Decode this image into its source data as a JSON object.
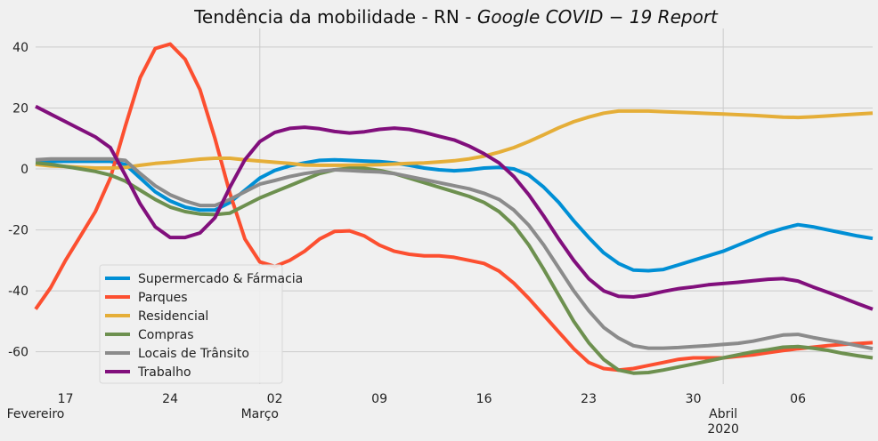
{
  "chart_data": {
    "type": "line",
    "title": "Tendência da mobilidade - RN - ",
    "title_italic": "Google COVID − 19 Report",
    "xlabel": "",
    "ylabel": "",
    "x_start_date": "2020-02-15",
    "x_end_date": "2020-04-11",
    "xlim": [
      0,
      56
    ],
    "ylim": [
      -70.6,
      46.1
    ],
    "yticks": [
      40,
      20,
      0,
      -20,
      -40,
      -60
    ],
    "xticks_minor": [
      {
        "day": 2,
        "label": "17"
      },
      {
        "day": 9,
        "label": "24"
      },
      {
        "day": 16,
        "label": "02"
      },
      {
        "day": 23,
        "label": "09"
      },
      {
        "day": 30,
        "label": "16"
      },
      {
        "day": 37,
        "label": "23"
      },
      {
        "day": 44,
        "label": "30"
      },
      {
        "day": 51,
        "label": "06"
      }
    ],
    "xticks_major": [
      {
        "day": 0,
        "label": "Fevereiro",
        "grid": false
      },
      {
        "day": 15,
        "label": "Março",
        "grid": true
      },
      {
        "day": 46,
        "label": "Abril",
        "label2": "2020",
        "grid": true
      }
    ],
    "grid": true,
    "legend_position": "lower-left",
    "series": [
      {
        "name": "Supermercado & Fármacia",
        "color": "#008fd5",
        "values": [
          2.5,
          2.5,
          2.5,
          2.5,
          2.5,
          2.5,
          1.5,
          -3,
          -7.5,
          -10.5,
          -12.5,
          -13.5,
          -13.5,
          -11,
          -7,
          -3,
          -0.5,
          1,
          2,
          2.8,
          3,
          2.8,
          2.6,
          2.4,
          2,
          1.2,
          0.3,
          -0.3,
          -0.6,
          -0.3,
          0.3,
          0.5,
          0,
          -2,
          -6,
          -11,
          -17,
          -22.5,
          -27.5,
          -31,
          -33.2,
          -33.4,
          -33,
          -31.5,
          -30,
          -28.5,
          -27,
          -25,
          -23,
          -21,
          -19.5,
          -18.3,
          -19,
          -20,
          -21,
          -22,
          -22.8
        ]
      },
      {
        "name": "Parques",
        "color": "#fc4f30",
        "values": [
          -46,
          -39,
          -30,
          -22,
          -14,
          -3,
          14,
          30,
          39.5,
          41,
          36,
          26,
          10,
          -8,
          -23,
          -30.5,
          -32,
          -30,
          -27,
          -23,
          -20.5,
          -20.3,
          -22,
          -25,
          -27,
          -28,
          -28.5,
          -28.5,
          -29,
          -30,
          -31,
          -33.5,
          -37.5,
          -42.5,
          -48,
          -53.5,
          -59,
          -63.5,
          -65.5,
          -66,
          -65.5,
          -64.5,
          -63.5,
          -62.5,
          -62,
          -62,
          -62,
          -61.5,
          -61,
          -60.3,
          -59.6,
          -59,
          -58.5,
          -58,
          -57.6,
          -57.3,
          -57
        ]
      },
      {
        "name": "Residencial",
        "color": "#e5ae38",
        "values": [
          1.5,
          1,
          0.8,
          0.5,
          0.3,
          0.3,
          0.5,
          1.2,
          1.8,
          2.2,
          2.7,
          3.2,
          3.5,
          3.5,
          3,
          2.6,
          2.2,
          1.8,
          1.3,
          1.2,
          1.2,
          1.2,
          1.3,
          1.4,
          1.6,
          1.8,
          2,
          2.3,
          2.7,
          3.3,
          4.2,
          5.5,
          7,
          9,
          11.2,
          13.5,
          15.5,
          17,
          18.3,
          19,
          19,
          19,
          18.8,
          18.6,
          18.4,
          18.2,
          18,
          17.8,
          17.6,
          17.3,
          17,
          16.9,
          17.1,
          17.4,
          17.7,
          18,
          18.3
        ]
      },
      {
        "name": "Compras",
        "color": "#6d904f",
        "values": [
          2,
          1.5,
          0.8,
          0,
          -0.8,
          -2,
          -4,
          -7,
          -10,
          -12.5,
          -14,
          -14.8,
          -15,
          -14.5,
          -12,
          -9.5,
          -7.5,
          -5.5,
          -3.5,
          -1.5,
          -0.3,
          0.2,
          0.2,
          -0.5,
          -1.5,
          -3,
          -4.5,
          -6,
          -7.5,
          -9,
          -11,
          -14,
          -18.5,
          -25,
          -33,
          -41.5,
          -50,
          -57,
          -62.5,
          -66,
          -67,
          -66.8,
          -66,
          -65,
          -64,
          -63,
          -62,
          -61,
          -60,
          -59.3,
          -58.5,
          -58.3,
          -58.8,
          -59.5,
          -60.5,
          -61.3,
          -62
        ]
      },
      {
        "name": "Locais de Trânsito",
        "color": "#8b8b8b",
        "values": [
          3,
          3.3,
          3.3,
          3.3,
          3.3,
          3.3,
          2.8,
          -1.5,
          -5.5,
          -8.5,
          -10.5,
          -12,
          -12,
          -10,
          -7.5,
          -5,
          -3.8,
          -2.5,
          -1.5,
          -0.8,
          -0.3,
          -0.5,
          -0.8,
          -1,
          -1.5,
          -2.5,
          -3.5,
          -4.5,
          -5.5,
          -6.5,
          -8,
          -10,
          -13.5,
          -18.5,
          -25,
          -32.5,
          -40,
          -46.5,
          -52,
          -55.5,
          -58,
          -58.8,
          -58.8,
          -58.6,
          -58.3,
          -58,
          -57.6,
          -57.2,
          -56.5,
          -55.5,
          -54.5,
          -54.3,
          -55.3,
          -56.2,
          -57,
          -58,
          -59
        ]
      },
      {
        "name": "Trabalho",
        "color": "#810f7c",
        "values": [
          20.5,
          18,
          15.5,
          13,
          10.5,
          7,
          -2,
          -11.5,
          -19,
          -22.5,
          -22.5,
          -21,
          -16,
          -6,
          3,
          9,
          12,
          13.3,
          13.7,
          13.2,
          12.3,
          11.8,
          12.2,
          13,
          13.4,
          13,
          12,
          10.7,
          9.5,
          7.5,
          5,
          2,
          -2.5,
          -8.5,
          -15.5,
          -23,
          -30,
          -36,
          -40,
          -41.8,
          -42,
          -41.3,
          -40.2,
          -39.3,
          -38.7,
          -38,
          -37.6,
          -37.2,
          -36.7,
          -36.2,
          -36,
          -36.8,
          -38.7,
          -40.5,
          -42.3,
          -44.2,
          -46
        ]
      }
    ]
  }
}
